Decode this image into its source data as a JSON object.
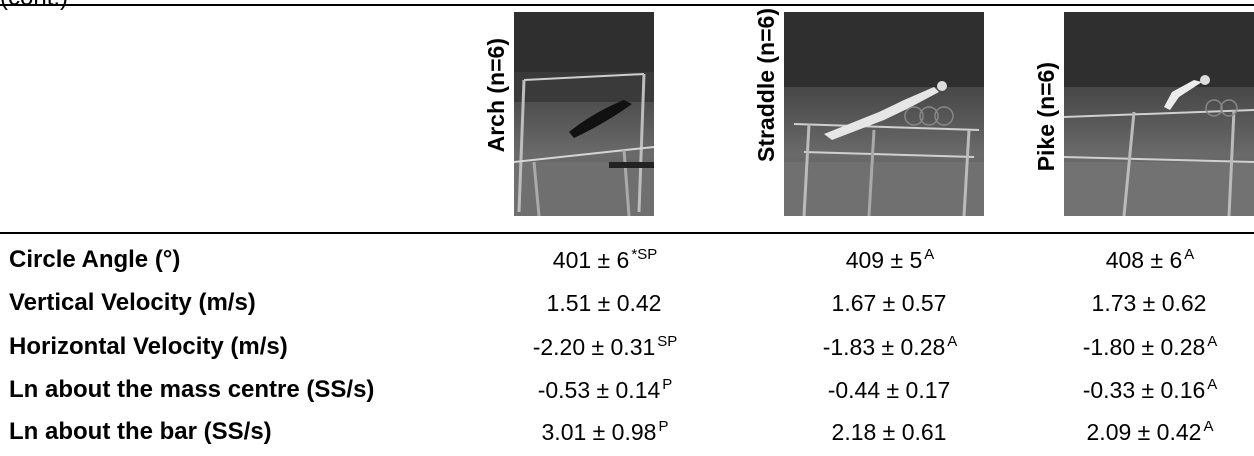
{
  "header": {
    "partial_title": "(cont.)",
    "columns": [
      {
        "label": "Arch (n=6)"
      },
      {
        "label": "Straddle (n=6)"
      },
      {
        "label": "Pike (n=6)"
      }
    ]
  },
  "rows": [
    {
      "label": "Circle Angle (°)",
      "values": [
        "401 ± 6",
        "409 ± 5",
        "408 ± 6"
      ],
      "sups": [
        "*SP",
        "A",
        "A"
      ]
    },
    {
      "label": "Vertical Velocity (m/s)",
      "values": [
        "1.51 ± 0.42",
        "1.67 ± 0.57",
        "1.73 ± 0.62"
      ],
      "sups": [
        "",
        "",
        ""
      ]
    },
    {
      "label": "Horizontal Velocity (m/s)",
      "values": [
        "-2.20 ± 0.31",
        "-1.83 ± 0.28",
        "-1.80 ± 0.28"
      ],
      "sups": [
        "SP",
        "A",
        "A"
      ]
    },
    {
      "label": "Ln about the mass centre (SS/s)",
      "values": [
        "-0.53 ± 0.14",
        "-0.44 ± 0.17",
        "-0.33 ± 0.16"
      ],
      "sups": [
        "P",
        "",
        "A"
      ]
    },
    {
      "label": "Ln about the bar (SS/s)",
      "values": [
        "3.01 ± 0.98",
        "2.18 ± 0.61",
        "2.09 ± 0.42"
      ],
      "sups": [
        "P",
        "",
        "A"
      ]
    }
  ]
}
